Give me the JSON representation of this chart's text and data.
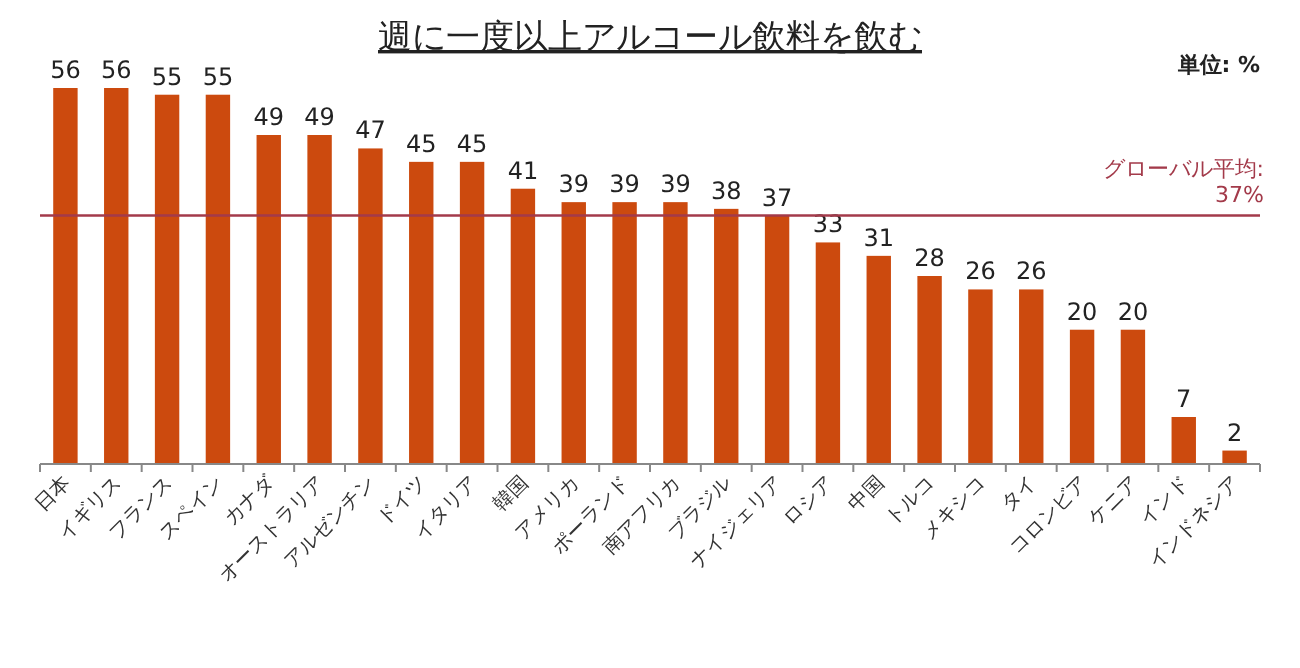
{
  "chart_data": {
    "type": "bar",
    "title": "週に一度以上アルコール飲料を飲む",
    "categories": [
      "日本",
      "イギリス",
      "フランス",
      "スペイン",
      "カナダ",
      "オーストラリア",
      "アルゼンチン",
      "ドイツ",
      "イタリア",
      "韓国",
      "アメリカ",
      "ポーランド",
      "南アフリカ",
      "ブラジル",
      "ナイジェリア",
      "ロシア",
      "中国",
      "トルコ",
      "メキシコ",
      "タイ",
      "コロンビア",
      "ケニア",
      "インド",
      "インドネシア"
    ],
    "values": [
      56,
      56,
      55,
      55,
      49,
      49,
      47,
      45,
      45,
      41,
      39,
      39,
      39,
      38,
      37,
      33,
      31,
      28,
      26,
      26,
      20,
      20,
      7,
      2
    ],
    "color": "#cc4a0e",
    "data_labels": true,
    "ref_lines": [
      {
        "axis": "y",
        "value": 37,
        "label": "グローバル平均: 37%",
        "color": "#a33a4a"
      }
    ],
    "annotations": [
      "単位: %"
    ]
  }
}
